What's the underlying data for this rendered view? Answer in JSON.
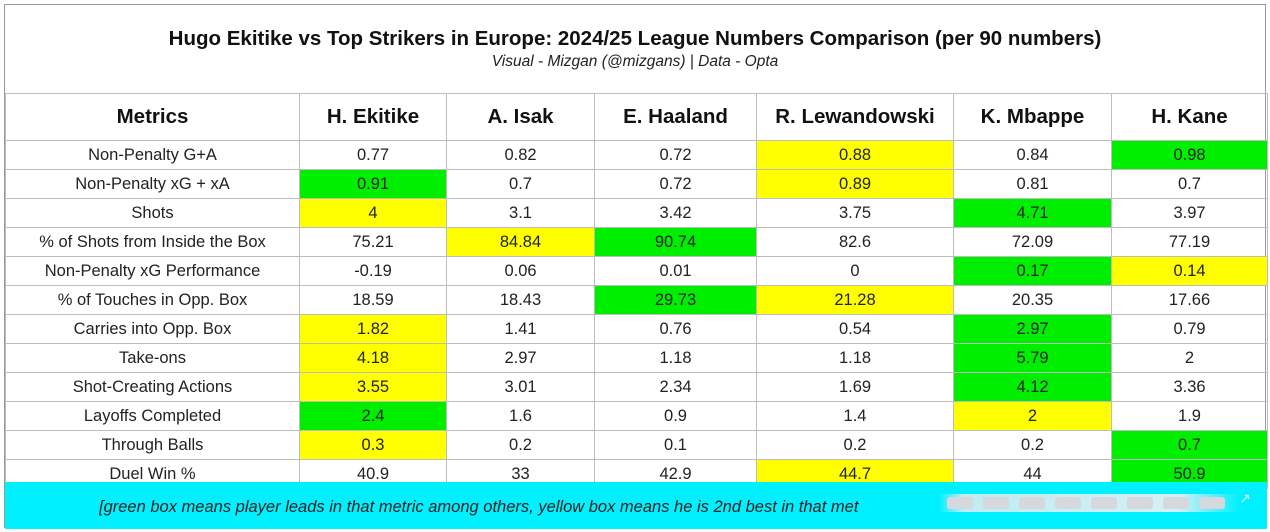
{
  "title": "Hugo Ekitike vs Top Strikers in Europe: 2024/25 League Numbers Comparison (per 90 numbers)",
  "subtitle": "Visual - Mizgan (@mizgans) | Data - Opta",
  "colors": {
    "lead": "#00ee00",
    "second": "#ffff00",
    "footer_bg": "#00f0ff"
  },
  "chart_data": {
    "type": "table",
    "columns": [
      "Metrics",
      "H. Ekitike",
      "A. Isak",
      "E. Haaland",
      "R. Lewandowski",
      "K. Mbappe",
      "H. Kane"
    ],
    "rows": [
      {
        "metric": "Non-Penalty G+A",
        "values": [
          "0.77",
          "0.82",
          "0.72",
          "0.88",
          "0.84",
          "0.98"
        ],
        "lead": 5,
        "second": 3
      },
      {
        "metric": "Non-Penalty xG + xA",
        "values": [
          "0.91",
          "0.7",
          "0.72",
          "0.89",
          "0.81",
          "0.7"
        ],
        "lead": 0,
        "second": 3
      },
      {
        "metric": "Shots",
        "values": [
          "4",
          "3.1",
          "3.42",
          "3.75",
          "4.71",
          "3.97"
        ],
        "lead": 4,
        "second": 0
      },
      {
        "metric": "% of Shots from Inside the Box",
        "values": [
          "75.21",
          "84.84",
          "90.74",
          "82.6",
          "72.09",
          "77.19"
        ],
        "lead": 2,
        "second": 1
      },
      {
        "metric": "Non-Penalty xG Performance",
        "values": [
          "-0.19",
          "0.06",
          "0.01",
          "0",
          "0.17",
          "0.14"
        ],
        "lead": 4,
        "second": 5
      },
      {
        "metric": "% of Touches in Opp. Box",
        "values": [
          "18.59",
          "18.43",
          "29.73",
          "21.28",
          "20.35",
          "17.66"
        ],
        "lead": 2,
        "second": 3
      },
      {
        "metric": "Carries into Opp. Box",
        "values": [
          "1.82",
          "1.41",
          "0.76",
          "0.54",
          "2.97",
          "0.79"
        ],
        "lead": 4,
        "second": 0
      },
      {
        "metric": "Take-ons",
        "values": [
          "4.18",
          "2.97",
          "1.18",
          "1.18",
          "5.79",
          "2"
        ],
        "lead": 4,
        "second": 0
      },
      {
        "metric": "Shot-Creating Actions",
        "values": [
          "3.55",
          "3.01",
          "2.34",
          "1.69",
          "4.12",
          "3.36"
        ],
        "lead": 4,
        "second": 0
      },
      {
        "metric": "Layoffs Completed",
        "values": [
          "2.4",
          "1.6",
          "0.9",
          "1.4",
          "2",
          "1.9"
        ],
        "lead": 0,
        "second": 4
      },
      {
        "metric": "Through Balls",
        "values": [
          "0.3",
          "0.2",
          "0.1",
          "0.2",
          "0.2",
          "0.7"
        ],
        "lead": 5,
        "second": 0
      },
      {
        "metric": "Duel Win %",
        "values": [
          "40.9",
          "33",
          "42.9",
          "44.7",
          "44",
          "50.9"
        ],
        "lead": 5,
        "second": 3
      }
    ]
  },
  "footer": {
    "text": "[green box means player leads in that metric among others, yellow box means he is 2nd best in that met"
  }
}
